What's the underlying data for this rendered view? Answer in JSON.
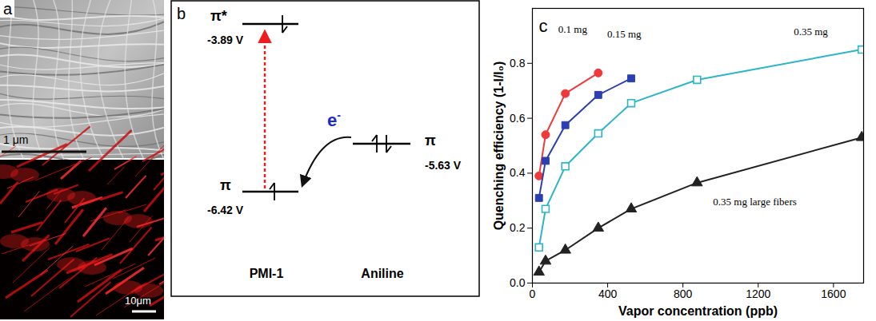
{
  "panel_a": {
    "label": "a",
    "scale_bars": [
      "1 μm",
      "10μm"
    ]
  },
  "panel_b": {
    "label": "b",
    "molecules": [
      {
        "name": "PMI-1",
        "levels": [
          {
            "symbol": "π*",
            "energy": "-3.89 V"
          },
          {
            "symbol": "π",
            "energy": "-6.42 V"
          }
        ]
      },
      {
        "name": "Aniline",
        "levels": [
          {
            "symbol": "π",
            "energy": "-5.63 V"
          }
        ]
      }
    ],
    "transfer_label": {
      "text": "e",
      "superscript": "-"
    }
  },
  "chart_data": {
    "type": "line",
    "panel_label": "c",
    "xlabel": "Vapor concentration (ppb)",
    "ylabel": "Quenching efficiency (1-I/I₀)",
    "xlim": [
      0,
      1760
    ],
    "xticks": [
      0,
      400,
      800,
      1200,
      1600
    ],
    "ylim": [
      0,
      1.0
    ],
    "yticks": [
      {
        "value": 0,
        "label": "0.0"
      },
      0.2,
      0.4,
      0.6,
      0.8
    ],
    "grid": false,
    "series": [
      {
        "name": "0.1 mg",
        "color": "#f03a3a",
        "marker": "circle",
        "x": [
          35,
          70,
          175,
          350
        ],
        "values": [
          0.39,
          0.54,
          0.69,
          0.765
        ]
      },
      {
        "name": "0.15 mg",
        "color": "#2b3fb0",
        "marker": "square",
        "x": [
          35,
          70,
          175,
          350,
          525
        ],
        "values": [
          0.31,
          0.445,
          0.575,
          0.685,
          0.745
        ]
      },
      {
        "name": "0.35 mg",
        "color": "#2bb5c8",
        "marker": "open square",
        "x": [
          35,
          70,
          175,
          350,
          525,
          875,
          1750
        ],
        "values": [
          0.13,
          0.27,
          0.425,
          0.545,
          0.655,
          0.74,
          0.85
        ]
      },
      {
        "name": "0.35 mg large fibers",
        "color": "#222222",
        "marker": "triangle",
        "x": [
          35,
          70,
          175,
          350,
          525,
          875,
          1750
        ],
        "values": [
          0.04,
          0.08,
          0.12,
          0.2,
          0.27,
          0.365,
          0.53
        ]
      }
    ]
  }
}
